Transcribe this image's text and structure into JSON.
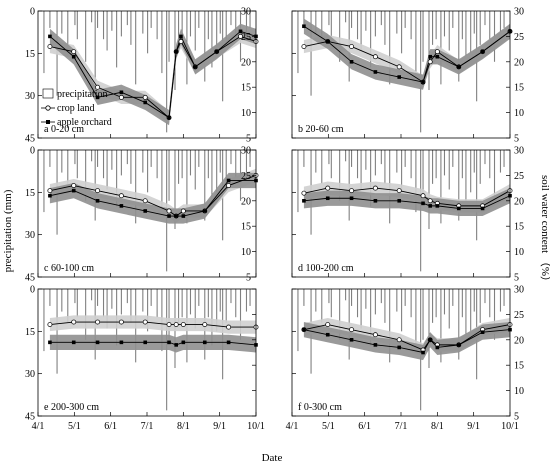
{
  "figure": {
    "xlabel": "Date",
    "ylabel_left": "precipitation (mm)",
    "ylabel_right": "soil water content （%）"
  },
  "legend": {
    "precip": "precipitation",
    "crop": "crop land",
    "orchard": "apple orchard"
  },
  "chart_data": {
    "type": "line",
    "x_ticks": [
      "4/1",
      "5/1",
      "6/1",
      "7/1",
      "8/1",
      "9/1",
      "10/1"
    ],
    "x_range_days": [
      0,
      183
    ],
    "precip_axis": {
      "label": "precipitation (mm)",
      "inverted": true,
      "ylim": [
        0,
        45
      ],
      "ticks": [
        0,
        15,
        30,
        45
      ]
    },
    "swc_axis": {
      "label": "soil water content （%）",
      "ylim": [
        5,
        30
      ],
      "ticks": [
        5,
        10,
        15,
        20,
        25,
        30
      ]
    },
    "colors": {
      "crop_band": "#cfcfcf",
      "orchard_band": "#8f8f8f",
      "precip_bar": "#808080"
    },
    "precipitation": {
      "days": [
        5,
        10,
        16,
        20,
        25,
        31,
        33,
        40,
        45,
        48,
        50,
        55,
        58,
        62,
        66,
        70,
        75,
        78,
        82,
        88,
        92,
        95,
        100,
        104,
        108,
        110,
        115,
        118,
        121,
        125,
        128,
        132,
        135,
        140,
        143,
        146,
        150,
        153,
        155,
        158,
        162,
        166,
        170,
        175,
        178
      ],
      "values": [
        22,
        6,
        30,
        8,
        12,
        5,
        10,
        18,
        4,
        25,
        6,
        10,
        14,
        7,
        20,
        9,
        5,
        12,
        26,
        8,
        15,
        6,
        10,
        22,
        43,
        18,
        28,
        12,
        10,
        26,
        9,
        14,
        6,
        25,
        10,
        20,
        15,
        8,
        32,
        12,
        5,
        10,
        18,
        8,
        6
      ]
    },
    "panels": [
      {
        "label": "a 0-20 cm",
        "crop": {
          "days": [
            10,
            30,
            50,
            70,
            90,
            110,
            116,
            120,
            132,
            150,
            170,
            183
          ],
          "values": [
            23,
            22,
            15,
            13,
            13,
            9,
            22,
            24,
            19,
            22,
            25,
            24
          ]
        },
        "orchard": {
          "days": [
            10,
            30,
            50,
            70,
            90,
            110,
            116,
            120,
            132,
            150,
            170,
            183
          ],
          "values": [
            25,
            21,
            13,
            14,
            12,
            9,
            22,
            25,
            19,
            22,
            26,
            25
          ]
        }
      },
      {
        "label": "b 20-60 cm",
        "crop": {
          "days": [
            10,
            30,
            50,
            70,
            90,
            110,
            116,
            122,
            140,
            160,
            183
          ],
          "values": [
            23,
            24,
            23,
            21,
            19,
            16,
            20,
            22,
            19,
            22,
            26
          ]
        },
        "orchard": {
          "days": [
            10,
            30,
            50,
            70,
            90,
            110,
            116,
            122,
            140,
            160,
            183
          ],
          "values": [
            27,
            24,
            20,
            18,
            17,
            16,
            21,
            21,
            19,
            22,
            26
          ]
        }
      },
      {
        "label": "c 60-100 cm",
        "crop": {
          "days": [
            10,
            30,
            50,
            70,
            90,
            110,
            116,
            122,
            140,
            160,
            183
          ],
          "values": [
            22,
            23,
            22,
            21,
            20,
            18,
            17,
            18,
            18,
            23,
            25
          ]
        },
        "orchard": {
          "days": [
            10,
            30,
            50,
            70,
            90,
            110,
            116,
            122,
            140,
            160,
            183
          ],
          "values": [
            21,
            22,
            20,
            19,
            18,
            17,
            17,
            17,
            18,
            24,
            24
          ]
        }
      },
      {
        "label": "d 100-200 cm",
        "crop": {
          "days": [
            10,
            30,
            50,
            70,
            90,
            110,
            116,
            122,
            140,
            160,
            183
          ],
          "values": [
            21.5,
            22.5,
            22,
            22.5,
            22,
            21,
            20,
            19.5,
            19,
            19,
            22
          ]
        },
        "orchard": {
          "days": [
            10,
            30,
            50,
            70,
            90,
            110,
            116,
            122,
            140,
            160,
            183
          ],
          "values": [
            20,
            20.5,
            20.5,
            20,
            20,
            19.5,
            19,
            19,
            18.5,
            18.5,
            21
          ]
        }
      },
      {
        "label": "e 200-300 cm",
        "crop": {
          "days": [
            10,
            30,
            50,
            70,
            90,
            110,
            116,
            122,
            140,
            160,
            183
          ],
          "values": [
            23,
            23.5,
            23.5,
            23.5,
            23.5,
            23,
            23,
            23,
            23,
            22.5,
            22.5
          ]
        },
        "orchard": {
          "days": [
            10,
            30,
            50,
            70,
            90,
            110,
            116,
            122,
            140,
            160,
            183
          ],
          "values": [
            19.5,
            19.5,
            19.5,
            19.5,
            19.5,
            19.5,
            19,
            19.5,
            19.5,
            19.5,
            19
          ]
        },
        "no_right_labels": true
      },
      {
        "label": "f 0-300 cm",
        "crop": {
          "days": [
            10,
            30,
            50,
            70,
            90,
            110,
            116,
            122,
            140,
            160,
            183
          ],
          "values": [
            22,
            23,
            22,
            21,
            20,
            18,
            20,
            19,
            19,
            22,
            23
          ]
        },
        "orchard": {
          "days": [
            10,
            30,
            50,
            70,
            90,
            110,
            116,
            122,
            140,
            160,
            183
          ],
          "values": [
            22,
            21,
            20,
            19,
            18.5,
            17.5,
            20,
            18.5,
            19,
            21.5,
            22
          ]
        }
      }
    ]
  }
}
